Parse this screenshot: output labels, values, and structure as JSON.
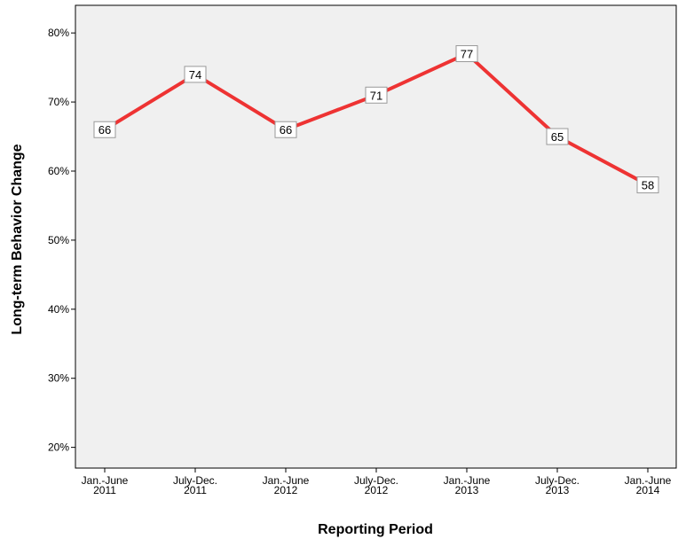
{
  "chart_data": {
    "type": "line",
    "title": "",
    "xlabel": "Reporting Period",
    "ylabel": "Long-term Behavior Change",
    "ylim": [
      17,
      84
    ],
    "yticks": [
      20,
      30,
      40,
      50,
      60,
      70,
      80
    ],
    "ytick_labels": [
      "20%",
      "30%",
      "40%",
      "50%",
      "60%",
      "70%",
      "80%"
    ],
    "categories": [
      [
        "Jan.-June",
        "2011"
      ],
      [
        "July-Dec.",
        "2011"
      ],
      [
        "Jan.-June",
        "2012"
      ],
      [
        "July-Dec.",
        "2012"
      ],
      [
        "Jan.-June",
        "2013"
      ],
      [
        "July-Dec.",
        "2013"
      ],
      [
        "Jan.-June",
        "2014"
      ]
    ],
    "series": [
      {
        "values": [
          66,
          74,
          66,
          71,
          77,
          65,
          58
        ],
        "labels": [
          "66",
          "74",
          "66",
          "71",
          "77",
          "65",
          "58"
        ],
        "color": "#ee3333"
      }
    ],
    "grid": false,
    "plot_background": "#f0f0f0"
  }
}
